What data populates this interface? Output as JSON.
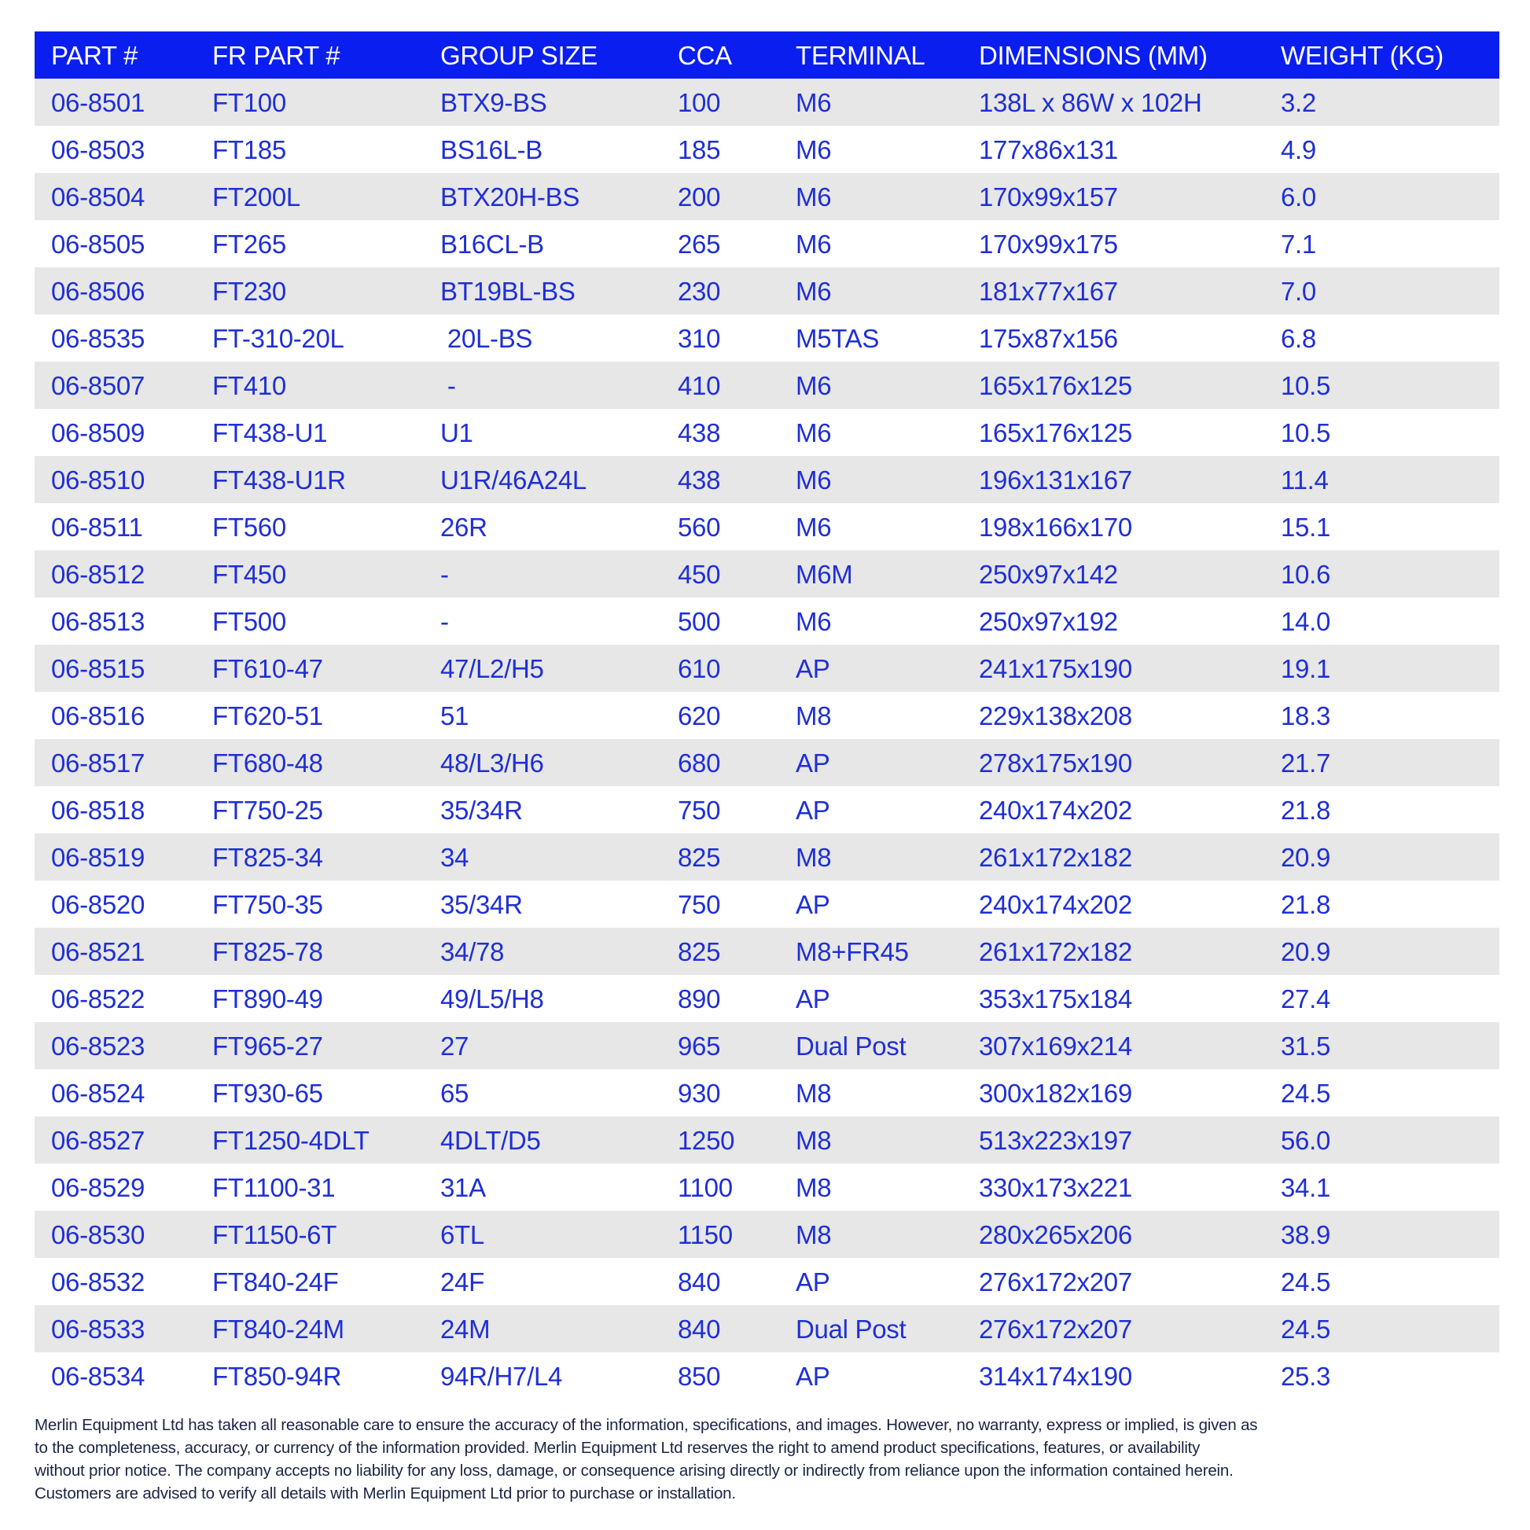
{
  "colors": {
    "header_bg": "#0a1ef0",
    "text": "#1f2fd6",
    "alt_row": "#e7e7e7",
    "footer_text": "#1c2444"
  },
  "table": {
    "headers": [
      "PART #",
      "FR PART #",
      "GROUP SIZE",
      "CCA",
      "TERMINAL",
      "DIMENSIONS (MM)",
      "WEIGHT (KG)"
    ],
    "rows": [
      [
        "06-8501",
        "FT100",
        "BTX9-BS",
        "100",
        "M6",
        "138L x 86W x 102H",
        "3.2"
      ],
      [
        "06-8503",
        "FT185",
        "BS16L-B",
        "185",
        "M6",
        "177x86x131",
        "4.9"
      ],
      [
        "06-8504",
        "FT200L",
        "BTX20H-BS",
        "200",
        "M6",
        "170x99x157",
        "6.0"
      ],
      [
        "06-8505",
        "FT265",
        "B16CL-B",
        "265",
        "M6",
        "170x99x175",
        "7.1"
      ],
      [
        "06-8506",
        "FT230",
        "BT19BL-BS",
        "230",
        "M6",
        "181x77x167",
        "7.0"
      ],
      [
        "06-8535",
        "FT-310-20L",
        " 20L-BS",
        "310",
        "M5TAS",
        "175x87x156",
        "6.8"
      ],
      [
        "06-8507",
        "FT410",
        " -",
        "410",
        "M6",
        "165x176x125",
        "10.5"
      ],
      [
        "06-8509",
        "FT438-U1",
        "U1",
        "438",
        "M6",
        "165x176x125",
        "10.5"
      ],
      [
        "06-8510",
        "FT438-U1R",
        "U1R/46A24L",
        "438",
        "M6",
        "196x131x167",
        "11.4"
      ],
      [
        "06-8511",
        "FT560",
        "26R",
        "560",
        "M6",
        "198x166x170",
        "15.1"
      ],
      [
        "06-8512",
        "FT450",
        "-",
        "450",
        "M6M",
        "250x97x142",
        "10.6"
      ],
      [
        "06-8513",
        "FT500",
        "-",
        "500",
        "M6",
        "250x97x192",
        "14.0"
      ],
      [
        "06-8515",
        "FT610-47",
        "47/L2/H5",
        "610",
        "AP",
        "241x175x190",
        "19.1"
      ],
      [
        "06-8516",
        "FT620-51",
        "51",
        "620",
        "M8",
        "229x138x208",
        "18.3"
      ],
      [
        "06-8517",
        "FT680-48",
        "48/L3/H6",
        "680",
        "AP",
        "278x175x190",
        "21.7"
      ],
      [
        "06-8518",
        "FT750-25",
        "35/34R",
        "750",
        "AP",
        "240x174x202",
        "21.8"
      ],
      [
        "06-8519",
        "FT825-34",
        "34",
        "825",
        "M8",
        "261x172x182",
        "20.9"
      ],
      [
        "06-8520",
        "FT750-35",
        "35/34R",
        "750",
        "AP",
        "240x174x202",
        "21.8"
      ],
      [
        "06-8521",
        "FT825-78",
        "34/78",
        "825",
        "M8+FR45",
        "261x172x182",
        "20.9"
      ],
      [
        "06-8522",
        "FT890-49",
        "49/L5/H8",
        "890",
        "AP",
        "353x175x184",
        "27.4"
      ],
      [
        "06-8523",
        "FT965-27",
        "27",
        "965",
        "Dual Post",
        "307x169x214",
        "31.5"
      ],
      [
        "06-8524",
        "FT930-65",
        "65",
        "930",
        "M8",
        "300x182x169",
        "24.5"
      ],
      [
        "06-8527",
        "FT1250-4DLT",
        "4DLT/D5",
        "1250",
        "M8",
        "513x223x197",
        "56.0"
      ],
      [
        "06-8529",
        "FT1100-31",
        "31A",
        "1100",
        "M8",
        "330x173x221",
        "34.1"
      ],
      [
        "06-8530",
        "FT1150-6T",
        "6TL",
        "1150",
        "M8",
        "280x265x206",
        "38.9"
      ],
      [
        "06-8532",
        "FT840-24F",
        "24F",
        "840",
        "AP",
        "276x172x207",
        "24.5"
      ],
      [
        "06-8533",
        "FT840-24M",
        "24M",
        "840",
        "Dual Post",
        "276x172x207",
        "24.5"
      ],
      [
        "06-8534",
        "FT850-94R",
        "94R/H7/L4",
        "850",
        "AP",
        "314x174x190",
        "25.3"
      ]
    ]
  },
  "footer": {
    "lines": [
      "Merlin Equipment Ltd has taken all reasonable care to ensure the accuracy of the information, specifications, and images. However, no warranty, express or implied, is given as",
      "to the completeness, accuracy, or currency of the information provided. Merlin Equipment Ltd reserves the right to amend product specifications, features, or availability",
      "without prior notice. The company accepts no liability for any loss, damage, or consequence arising directly or indirectly from reliance upon the information contained herein.",
      "Customers are advised to verify all details with Merlin Equipment Ltd prior to purchase or installation."
    ]
  }
}
